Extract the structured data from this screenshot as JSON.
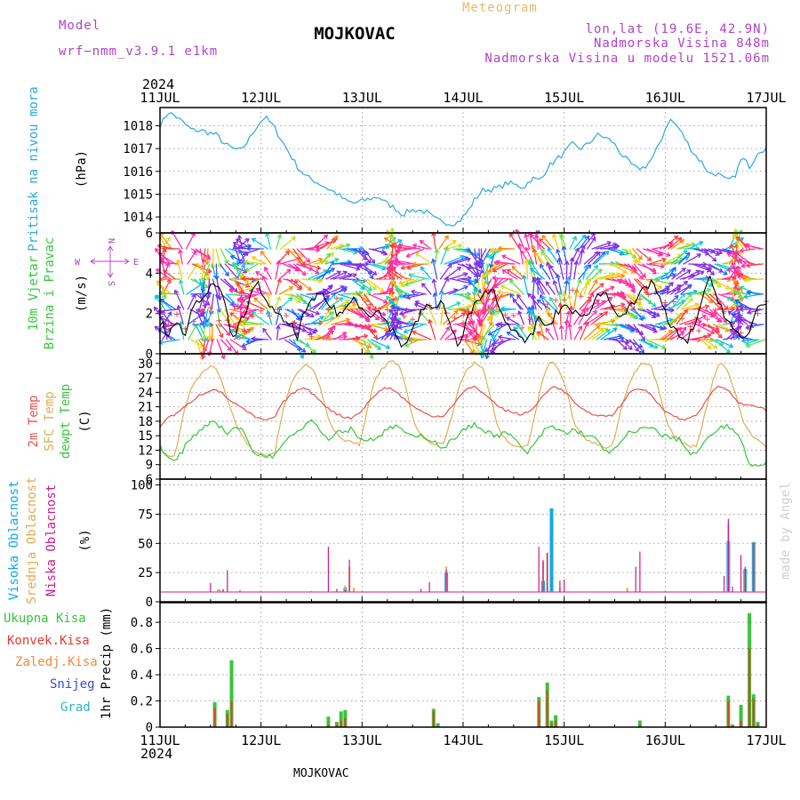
{
  "header": {
    "station": "MOJKOVAC",
    "model_label": "Model",
    "model_name": "wrf−nmm_v3.9.1 e1km",
    "product": "Meteogram",
    "coords": "lon,lat (19.6E, 42.9N)",
    "altitude": "Nadmorska Visina 848m",
    "model_altitude": "Nadmorska Visina u modelu 1521.06m",
    "footer_station": "MOJKOVAC",
    "signature": "made by Angel"
  },
  "colors": {
    "pressure": "#29a9e0",
    "temp2m": "#e8524b",
    "sfc": "#dfae55",
    "dewpt": "#33c93a",
    "wind_speed": "#000000",
    "gust": "#e8524b",
    "high_cloud": "#10a8ec",
    "mid_cloud": "#e5a94a",
    "low_cloud": "#c81a8f",
    "precip_total": "#39c43a",
    "precip_conv": "#e83a2e",
    "freezing": "#f08a3a",
    "snow": "#3a48d6",
    "hail": "#2bb6c6",
    "direction_legend": "#b042c8"
  },
  "time_axis": {
    "year": "2024",
    "days": [
      "11JUL",
      "12JUL",
      "13JUL",
      "14JUL",
      "15JUL",
      "16JUL",
      "17JUL"
    ]
  },
  "chart_data": [
    {
      "type": "line",
      "ylabel_lines": [
        "Pritisak na nivou mora",
        "(hPa)"
      ],
      "yticks": [
        1014,
        1015,
        1016,
        1017,
        1018
      ],
      "ylim": [
        1013.3,
        1018.8
      ],
      "series": [
        {
          "values": [
            1018.0,
            1018.6,
            1018.4,
            1018.1,
            1017.8,
            1017.8,
            1017.7,
            1017.6,
            1017.2,
            1017.0,
            1016.9,
            1017.4,
            1018.0,
            1018.4,
            1018.0,
            1017.4,
            1016.8,
            1016.2,
            1015.8,
            1015.6,
            1015.4,
            1015.2,
            1015.0,
            1014.7,
            1014.6,
            1014.7,
            1014.8,
            1014.9,
            1014.6,
            1014.4,
            1014.1,
            1014.3,
            1014.3,
            1014.2,
            1013.9,
            1013.8,
            1013.7,
            1013.8,
            1014.2,
            1014.8,
            1015.2,
            1015.2,
            1015.3,
            1015.5,
            1015.4,
            1015.3,
            1015.7,
            1015.6,
            1016.2,
            1016.5,
            1016.8,
            1017.2,
            1017.0,
            1017.2,
            1017.6,
            1017.5,
            1017.3,
            1016.8,
            1016.4,
            1016.1,
            1016.2,
            1016.6,
            1017.4,
            1018.3,
            1018.0,
            1017.4,
            1016.8,
            1016.4,
            1015.9,
            1015.9,
            1015.6,
            1015.7,
            1016.6,
            1016.2,
            1016.9,
            1017.0
          ],
          "noise": 0.12
        }
      ]
    },
    {
      "type": "line",
      "ylabel_lines": [
        "10m Vjetar",
        "Brzina i Pravac",
        "(m/s)"
      ],
      "direction_legend": {
        "n": "N",
        "s": "S",
        "e": "E",
        "w": "W"
      },
      "yticks": [
        0,
        2,
        4,
        6
      ],
      "ylim": [
        0,
        6
      ],
      "series": [
        {
          "values": [
            1.6,
            1.0,
            1.8,
            0.6,
            2.2,
            2.8,
            3.2,
            3.5,
            2.4,
            0.7,
            1.6,
            2.6,
            3.5,
            2.8,
            2.1,
            1.7,
            1.5,
            0.9,
            2.2,
            2.6,
            3.0,
            2.4,
            2.0,
            2.2,
            2.8,
            2.3,
            2.0,
            2.1,
            1.6,
            1.0,
            0.4,
            0.9,
            1.8,
            2.5,
            2.1,
            2.7,
            1.3,
            0.2,
            1.8,
            2.4,
            2.8,
            3.4,
            2.2,
            1.6,
            1.0,
            0.5,
            1.0,
            1.8,
            1.2,
            2.0,
            2.4,
            2.2,
            1.7,
            2.1,
            2.8,
            3.1,
            2.4,
            1.9,
            2.2,
            2.6,
            3.3,
            3.6,
            2.6,
            1.4,
            1.0,
            0.5,
            1.3,
            2.6,
            3.7,
            2.8,
            1.8,
            1.2,
            0.6,
            1.1,
            2.5,
            2.4
          ],
          "noise": 0.22
        },
        {
          "values": [
            1.3,
            1.3,
            1.8,
            0.9,
            1.7,
            1.8,
            2.2,
            1.8,
            1.5,
            1.1,
            1.3,
            1.6,
            2.0,
            2.2,
            2.1,
            1.9,
            1.9,
            1.5,
            1.3,
            1.0,
            1.8,
            2.1,
            2.8,
            2.5,
            2.3,
            2.4,
            2.6,
            2.4,
            2.3,
            2.5,
            2.1,
            1.9,
            1.8,
            2.1,
            2.4,
            2.2,
            2.0,
            1.7,
            1.9,
            2.2,
            2.5,
            2.4,
            2.0,
            1.8,
            1.6,
            1.5,
            1.7,
            2.0,
            2.4,
            2.7,
            2.8,
            3.0,
            2.6,
            2.5,
            2.7,
            2.9,
            2.8,
            2.6,
            2.3,
            2.5,
            2.8,
            3.0,
            2.8,
            2.5,
            2.2,
            1.6,
            1.0,
            1.3,
            1.8,
            2.4,
            1.8,
            1.4,
            1.0,
            1.4,
            2.1,
            2.4
          ],
          "noise": 0.3
        }
      ],
      "wind_dir_deg": [
        200,
        130,
        90,
        210,
        320,
        350,
        10,
        340,
        300,
        250,
        160,
        100,
        80,
        110,
        200,
        280,
        320,
        300,
        260,
        240,
        220,
        250,
        270,
        280,
        300,
        320,
        280,
        240,
        200,
        170,
        120,
        90,
        80,
        100,
        180,
        240,
        270,
        300,
        330,
        350,
        10,
        20,
        40,
        80,
        120,
        160,
        170,
        150,
        140,
        160,
        180,
        200,
        210,
        230,
        250,
        270,
        290,
        310,
        320,
        300,
        280,
        260,
        240,
        230,
        240,
        260,
        280,
        300,
        310,
        280,
        230,
        180,
        140,
        110,
        90,
        80
      ],
      "wind_speed_color_scale": [
        "#8a2be2",
        "#2a5cff",
        "#00b8ff",
        "#19d6b0",
        "#5be04d",
        "#c8e020",
        "#ffc800",
        "#ff8a00",
        "#ff3a3a",
        "#ff2ca8"
      ]
    },
    {
      "type": "line",
      "ylabel_lines": [
        "2m Temp",
        "SFC Temp",
        "dewpt Temp",
        "(C)"
      ],
      "yticks": [
        6,
        9,
        12,
        15,
        18,
        21,
        24,
        27,
        30
      ],
      "ylim": [
        6,
        32
      ],
      "series": [
        {
          "name": "2m Temp",
          "values": [
            17.0,
            18.8,
            19.4,
            20.6,
            22.0,
            23.3,
            24.0,
            24.8,
            23.9,
            22.5,
            21.5,
            20.3,
            19.3,
            18.4,
            18.2,
            19.0,
            21.8,
            23.4,
            24.6,
            24.8,
            23.6,
            22.1,
            20.6,
            19.5,
            18.9,
            18.7,
            19.8,
            21.6,
            23.4,
            24.8,
            24.9,
            23.8,
            22.4,
            21.0,
            20.1,
            19.3,
            19.0,
            19.2,
            21.1,
            23.0,
            24.7,
            25.1,
            24.1,
            22.7,
            21.2,
            20.3,
            19.8,
            19.4,
            19.8,
            21.3,
            23.5,
            25.2,
            24.8,
            23.8,
            21.9,
            20.4,
            19.6,
            19.3,
            19.0,
            19.3,
            21.3,
            23.5,
            24.7,
            24.6,
            23.5,
            21.6,
            20.0,
            19.0,
            18.3,
            18.6,
            19.6,
            21.7,
            24.2,
            25.3,
            24.6,
            22.4,
            21.3,
            21.5,
            21.0,
            20.2
          ],
          "noise": 0.25
        },
        {
          "name": "SFC Temp",
          "values": [
            12.5,
            10.5,
            10.8,
            19.5,
            24.5,
            27.0,
            28.8,
            29.6,
            26.5,
            21.6,
            16.8,
            14.4,
            12.2,
            11.3,
            11.0,
            11.6,
            20.5,
            25.5,
            28.3,
            29.8,
            28.8,
            24.5,
            18.3,
            15.4,
            14.2,
            13.7,
            13.0,
            20.2,
            26.5,
            29.0,
            30.4,
            30.0,
            25.5,
            18.2,
            15.0,
            13.8,
            13.2,
            13.2,
            19.0,
            25.5,
            28.6,
            30.1,
            29.2,
            23.6,
            16.8,
            14.2,
            12.8,
            12.6,
            13.2,
            20.3,
            27.5,
            30.7,
            28.3,
            24.5,
            17.4,
            14.8,
            13.7,
            13.2,
            12.5,
            13.0,
            19.8,
            25.5,
            28.5,
            30.1,
            29.5,
            24.4,
            18.0,
            15.1,
            13.6,
            12.8,
            13.0,
            19.5,
            26.2,
            30.5,
            28.6,
            23.5,
            18.0,
            15.2,
            14.0,
            12.8
          ],
          "noise": 0.3
        },
        {
          "name": "dewpt Temp",
          "values": [
            13.0,
            10.3,
            9.6,
            12.0,
            14.5,
            16.0,
            17.0,
            18.5,
            16.5,
            15.5,
            17.0,
            15.5,
            12.0,
            10.8,
            11.0,
            10.8,
            13.5,
            15.5,
            16.0,
            17.5,
            18.5,
            15.5,
            14.5,
            15.8,
            16.0,
            16.5,
            14.5,
            14.0,
            14.5,
            15.5,
            16.5,
            17.2,
            15.5,
            14.5,
            15.0,
            14.5,
            13.5,
            12.5,
            14.0,
            15.5,
            16.5,
            17.3,
            16.5,
            15.5,
            15.0,
            15.5,
            14.8,
            12.5,
            11.5,
            13.5,
            16.0,
            17.0,
            16.0,
            15.5,
            16.3,
            15.5,
            14.8,
            14.0,
            12.0,
            11.5,
            13.5,
            15.5,
            15.7,
            16.5,
            17.2,
            15.2,
            14.8,
            14.5,
            14.0,
            11.2,
            11.5,
            13.5,
            15.5,
            16.5,
            17.0,
            16.0,
            12.5,
            8.6,
            9.2,
            9.5
          ],
          "noise": 0.55
        }
      ]
    },
    {
      "type": "bar",
      "ylabel_lines": [
        "Visoka Oblacnost",
        "Srednja Oblacnost",
        "Niska Oblacnost",
        "(%)"
      ],
      "yticks": [
        0,
        25,
        50,
        75,
        100
      ],
      "ylim": [
        0,
        105
      ],
      "series_names": [
        "Visoka Oblacnost",
        "Srednja Oblacnost",
        "Niska Oblacnost"
      ],
      "bars": [
        {
          "t": 12,
          "h": 0,
          "m": 7,
          "l": 16
        },
        {
          "t": 14,
          "h": 10,
          "m": 11,
          "l": 8
        },
        {
          "t": 15,
          "h": 0,
          "m": 10,
          "l": 11
        },
        {
          "t": 16,
          "h": 0,
          "m": 0,
          "l": 27
        },
        {
          "t": 18,
          "h": 0,
          "m": 8,
          "l": 0
        },
        {
          "t": 19,
          "h": 0,
          "m": 9,
          "l": 10
        },
        {
          "t": 36,
          "h": 0,
          "m": 0,
          "l": 9
        },
        {
          "t": 40,
          "h": 0,
          "m": 0,
          "l": 47
        },
        {
          "t": 42,
          "h": 0,
          "m": 0,
          "l": 11
        },
        {
          "t": 44,
          "h": 12,
          "m": 14,
          "l": 10
        },
        {
          "t": 45,
          "h": 0,
          "m": 30,
          "l": 36
        },
        {
          "t": 46,
          "h": 0,
          "m": 12,
          "l": 9
        },
        {
          "t": 62,
          "h": 0,
          "m": 0,
          "l": 11
        },
        {
          "t": 64,
          "h": 0,
          "m": 0,
          "l": 17
        },
        {
          "t": 66,
          "h": 0,
          "m": 6,
          "l": 0
        },
        {
          "t": 67,
          "h": 0,
          "m": 7,
          "l": 8
        },
        {
          "t": 68,
          "h": 25,
          "m": 30,
          "l": 27
        },
        {
          "t": 86,
          "h": 0,
          "m": 0,
          "l": 5
        },
        {
          "t": 90,
          "h": 0,
          "m": 0,
          "l": 47
        },
        {
          "t": 91,
          "h": 18,
          "m": 34,
          "l": 36
        },
        {
          "t": 92,
          "h": 0,
          "m": 42,
          "l": 42
        },
        {
          "t": 93,
          "h": 80,
          "m": 0,
          "l": 0
        },
        {
          "t": 95,
          "h": 0,
          "m": 12,
          "l": 18
        },
        {
          "t": 96,
          "h": 0,
          "m": 0,
          "l": 19
        },
        {
          "t": 110,
          "h": 0,
          "m": 0,
          "l": 6
        },
        {
          "t": 111,
          "h": 0,
          "m": 12,
          "l": 9
        },
        {
          "t": 113,
          "h": 0,
          "m": 0,
          "l": 30
        },
        {
          "t": 114,
          "h": 0,
          "m": 0,
          "l": 43
        },
        {
          "t": 115,
          "h": 0,
          "m": 8,
          "l": 0
        },
        {
          "t": 134,
          "h": 0,
          "m": 0,
          "l": 22
        },
        {
          "t": 135,
          "h": 52,
          "m": 67,
          "l": 71
        },
        {
          "t": 136,
          "h": 0,
          "m": 0,
          "l": 13
        },
        {
          "t": 138,
          "h": 0,
          "m": 0,
          "l": 40
        },
        {
          "t": 139,
          "h": 28,
          "m": 27,
          "l": 30
        },
        {
          "t": 141,
          "h": 51,
          "m": 51,
          "l": 51
        }
      ]
    },
    {
      "type": "bar",
      "ylabel_lines": [
        "1hr Precip (mm)"
      ],
      "legend": [
        "Ukupna Kisa",
        "Konvek.Kisa",
        "Zaledj.Kisa",
        "Snijeg",
        "Grad"
      ],
      "yticks": [
        0,
        0.2,
        0.4,
        0.6,
        0.8
      ],
      "yticklabels": [
        "0",
        "0.2",
        "0.4",
        "0.6",
        "0.8"
      ],
      "ylim": [
        0,
        0.95
      ],
      "bars": [
        {
          "t": 13,
          "total": 0.19,
          "conv": 0.15
        },
        {
          "t": 16,
          "total": 0.13,
          "conv": 0.1
        },
        {
          "t": 17,
          "total": 0.51,
          "conv": 0.2
        },
        {
          "t": 40,
          "total": 0.08,
          "conv": 0.02
        },
        {
          "t": 42,
          "total": 0.04,
          "conv": 0.02
        },
        {
          "t": 43,
          "total": 0.12,
          "conv": 0.05
        },
        {
          "t": 44,
          "total": 0.13,
          "conv": 0.07
        },
        {
          "t": 65,
          "total": 0.14,
          "conv": 0.12
        },
        {
          "t": 66,
          "total": 0.03,
          "conv": 0.01
        },
        {
          "t": 90,
          "total": 0.23,
          "conv": 0.2
        },
        {
          "t": 92,
          "total": 0.34,
          "conv": 0.28
        },
        {
          "t": 93,
          "total": 0.05,
          "conv": 0.03
        },
        {
          "t": 94,
          "total": 0.09,
          "conv": 0.05
        },
        {
          "t": 114,
          "total": 0.05,
          "conv": 0.02
        },
        {
          "t": 135,
          "total": 0.24,
          "conv": 0.2
        },
        {
          "t": 136,
          "total": 0.02,
          "conv": 0.01
        },
        {
          "t": 138,
          "total": 0.17,
          "conv": 0.05
        },
        {
          "t": 140,
          "total": 0.87,
          "conv": 0.6
        },
        {
          "t": 141,
          "total": 0.25,
          "conv": 0.22
        },
        {
          "t": 142,
          "total": 0.04,
          "conv": 0.02
        }
      ]
    }
  ]
}
